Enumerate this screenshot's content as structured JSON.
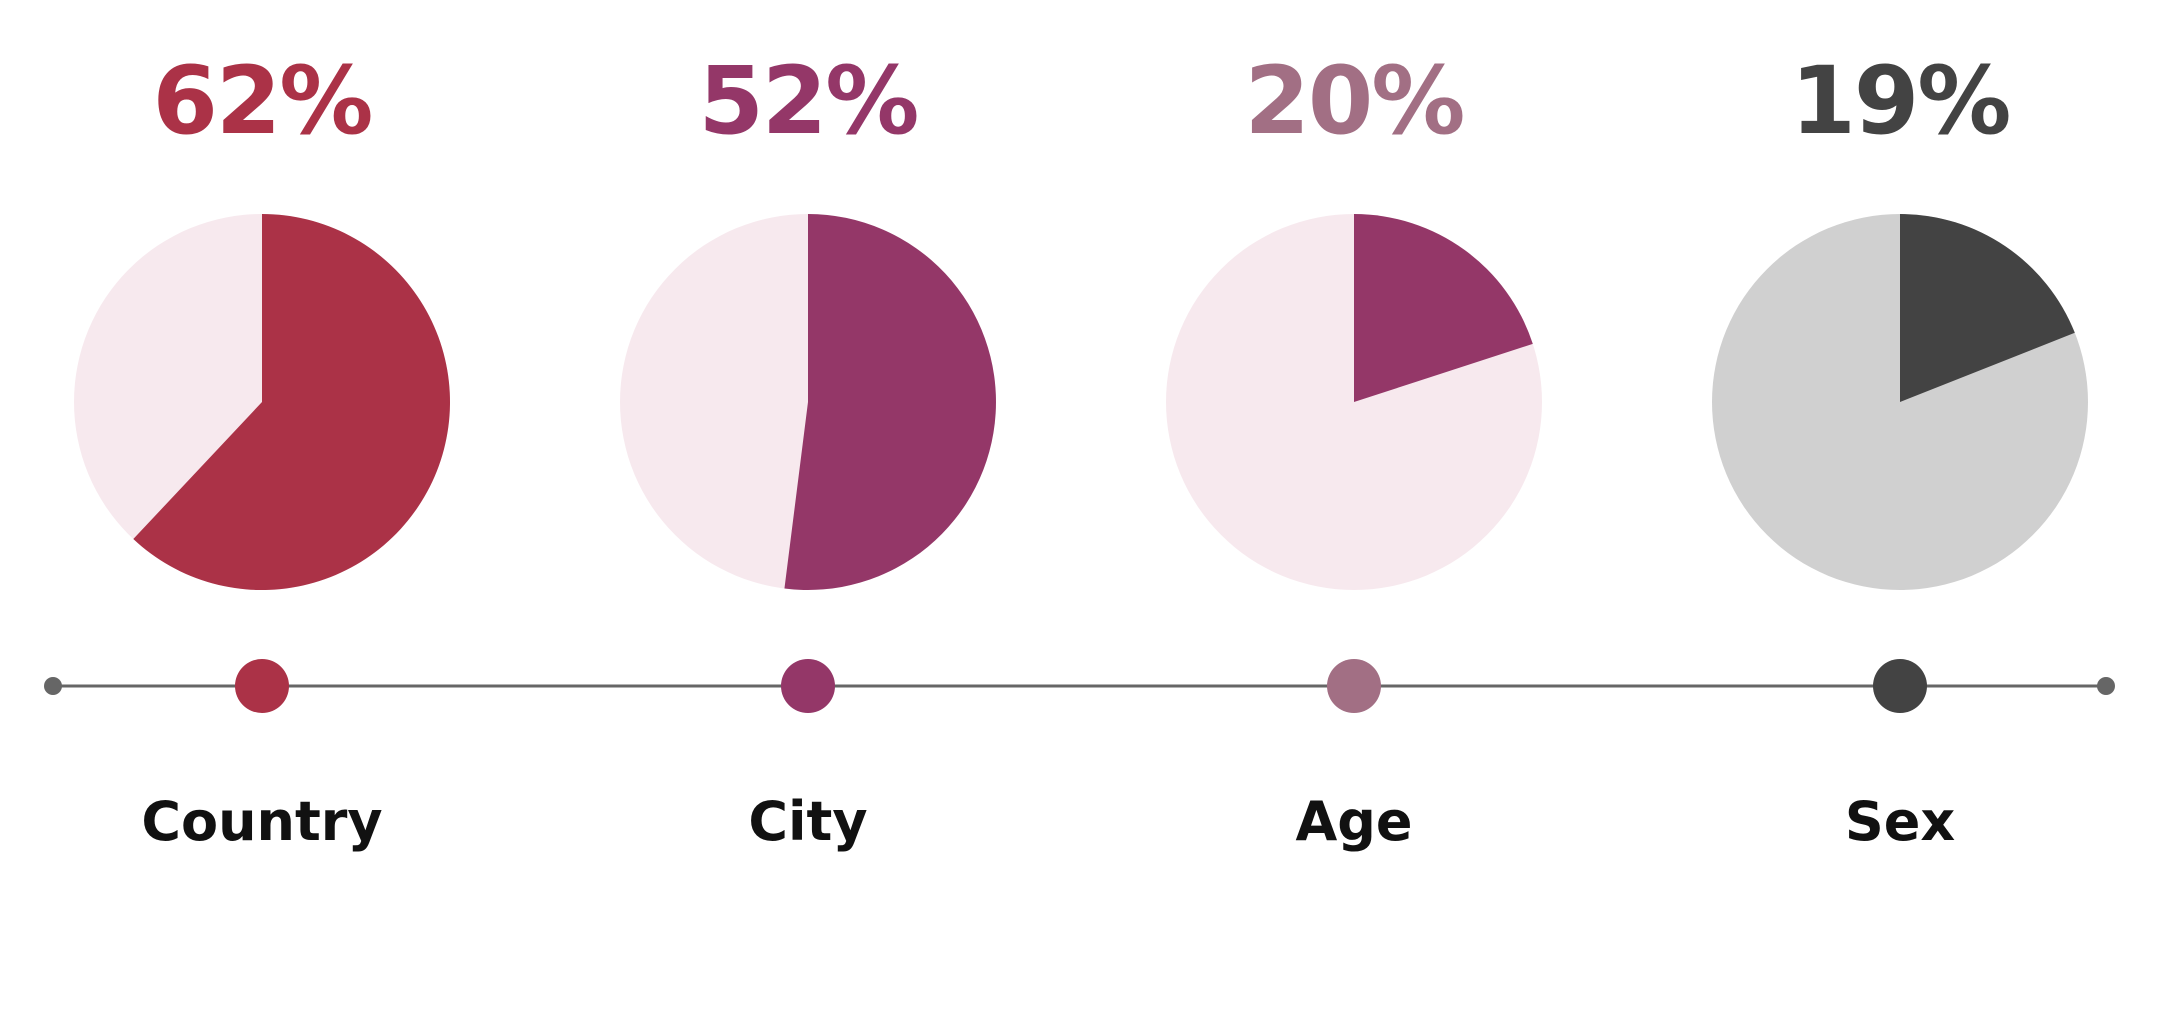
{
  "chart_data": {
    "type": "pie",
    "items": [
      {
        "category": "Country",
        "value": 62,
        "label": "62%",
        "color": "#ab3247",
        "rest_color": "#f7e9ee",
        "text_color": "#ab3247",
        "dot_color": "#ab3247"
      },
      {
        "category": "City",
        "value": 52,
        "label": "52%",
        "color": "#943768",
        "rest_color": "#f7e9ee",
        "text_color": "#943768",
        "dot_color": "#943768"
      },
      {
        "category": "Age",
        "value": 20,
        "label": "20%",
        "color": "#943768",
        "rest_color": "#f7e9ee",
        "text_color": "#a26f84",
        "dot_color": "#a26f84"
      },
      {
        "category": "Sex",
        "value": 19,
        "label": "19%",
        "color": "#434343",
        "rest_color": "#d0d0d0",
        "text_color": "#434343",
        "dot_color": "#434343"
      }
    ],
    "timeline_color": "#666666"
  }
}
